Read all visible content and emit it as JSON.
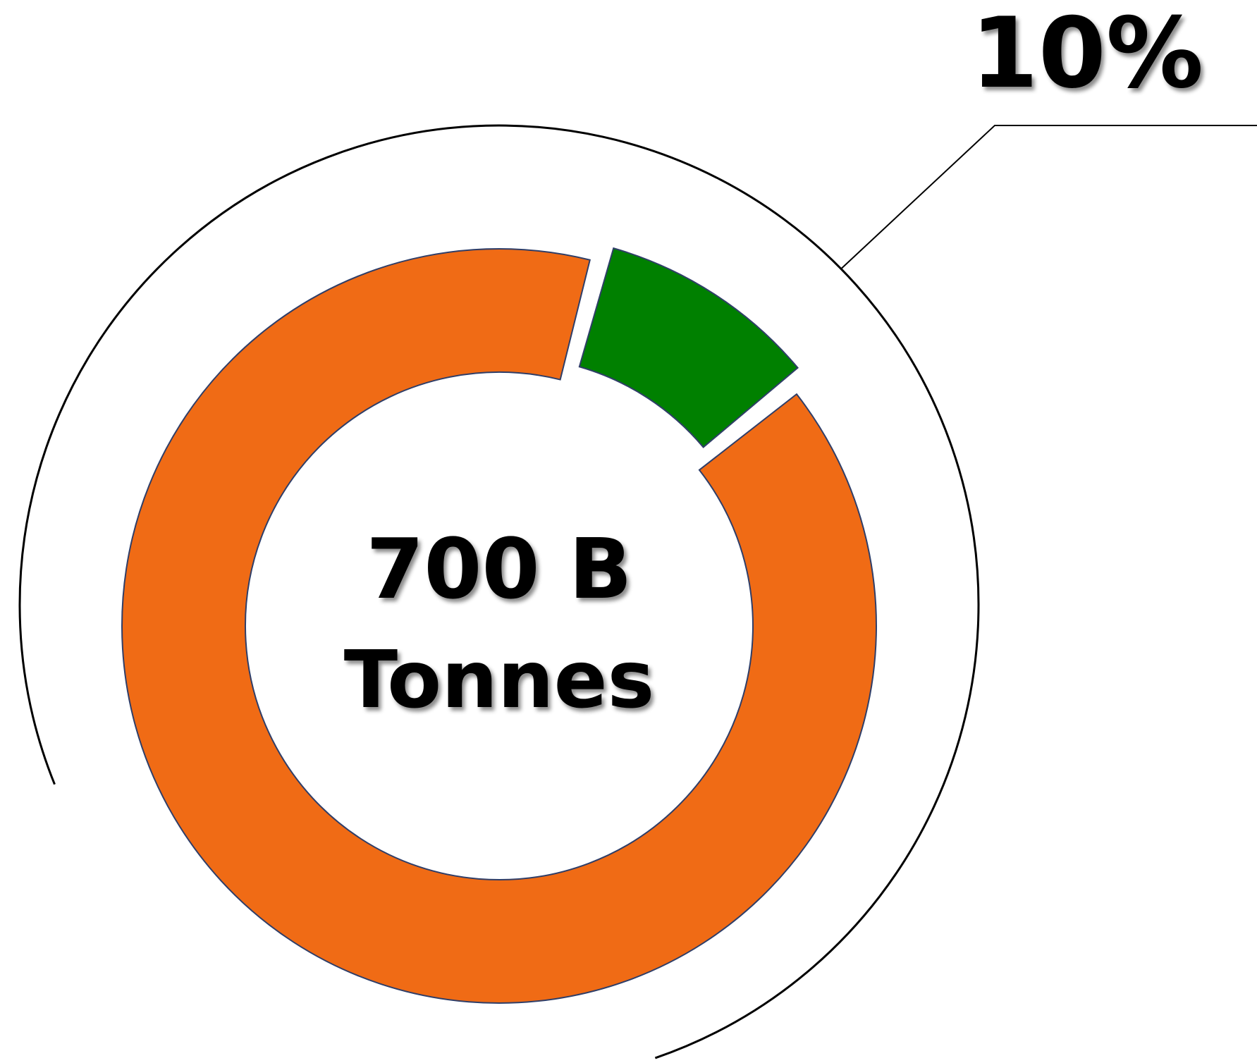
{
  "chart_data": {
    "type": "pie",
    "slices": [
      {
        "value": 90,
        "color": "#F06B15"
      },
      {
        "value": 10,
        "color": "#008000"
      }
    ],
    "center_value": "700 B",
    "center_unit": "Tonnes",
    "annotation": "10%"
  },
  "colors": {
    "background": "#ffffff",
    "slice_outline": "#2F3E68",
    "callout_line": "#000000"
  }
}
